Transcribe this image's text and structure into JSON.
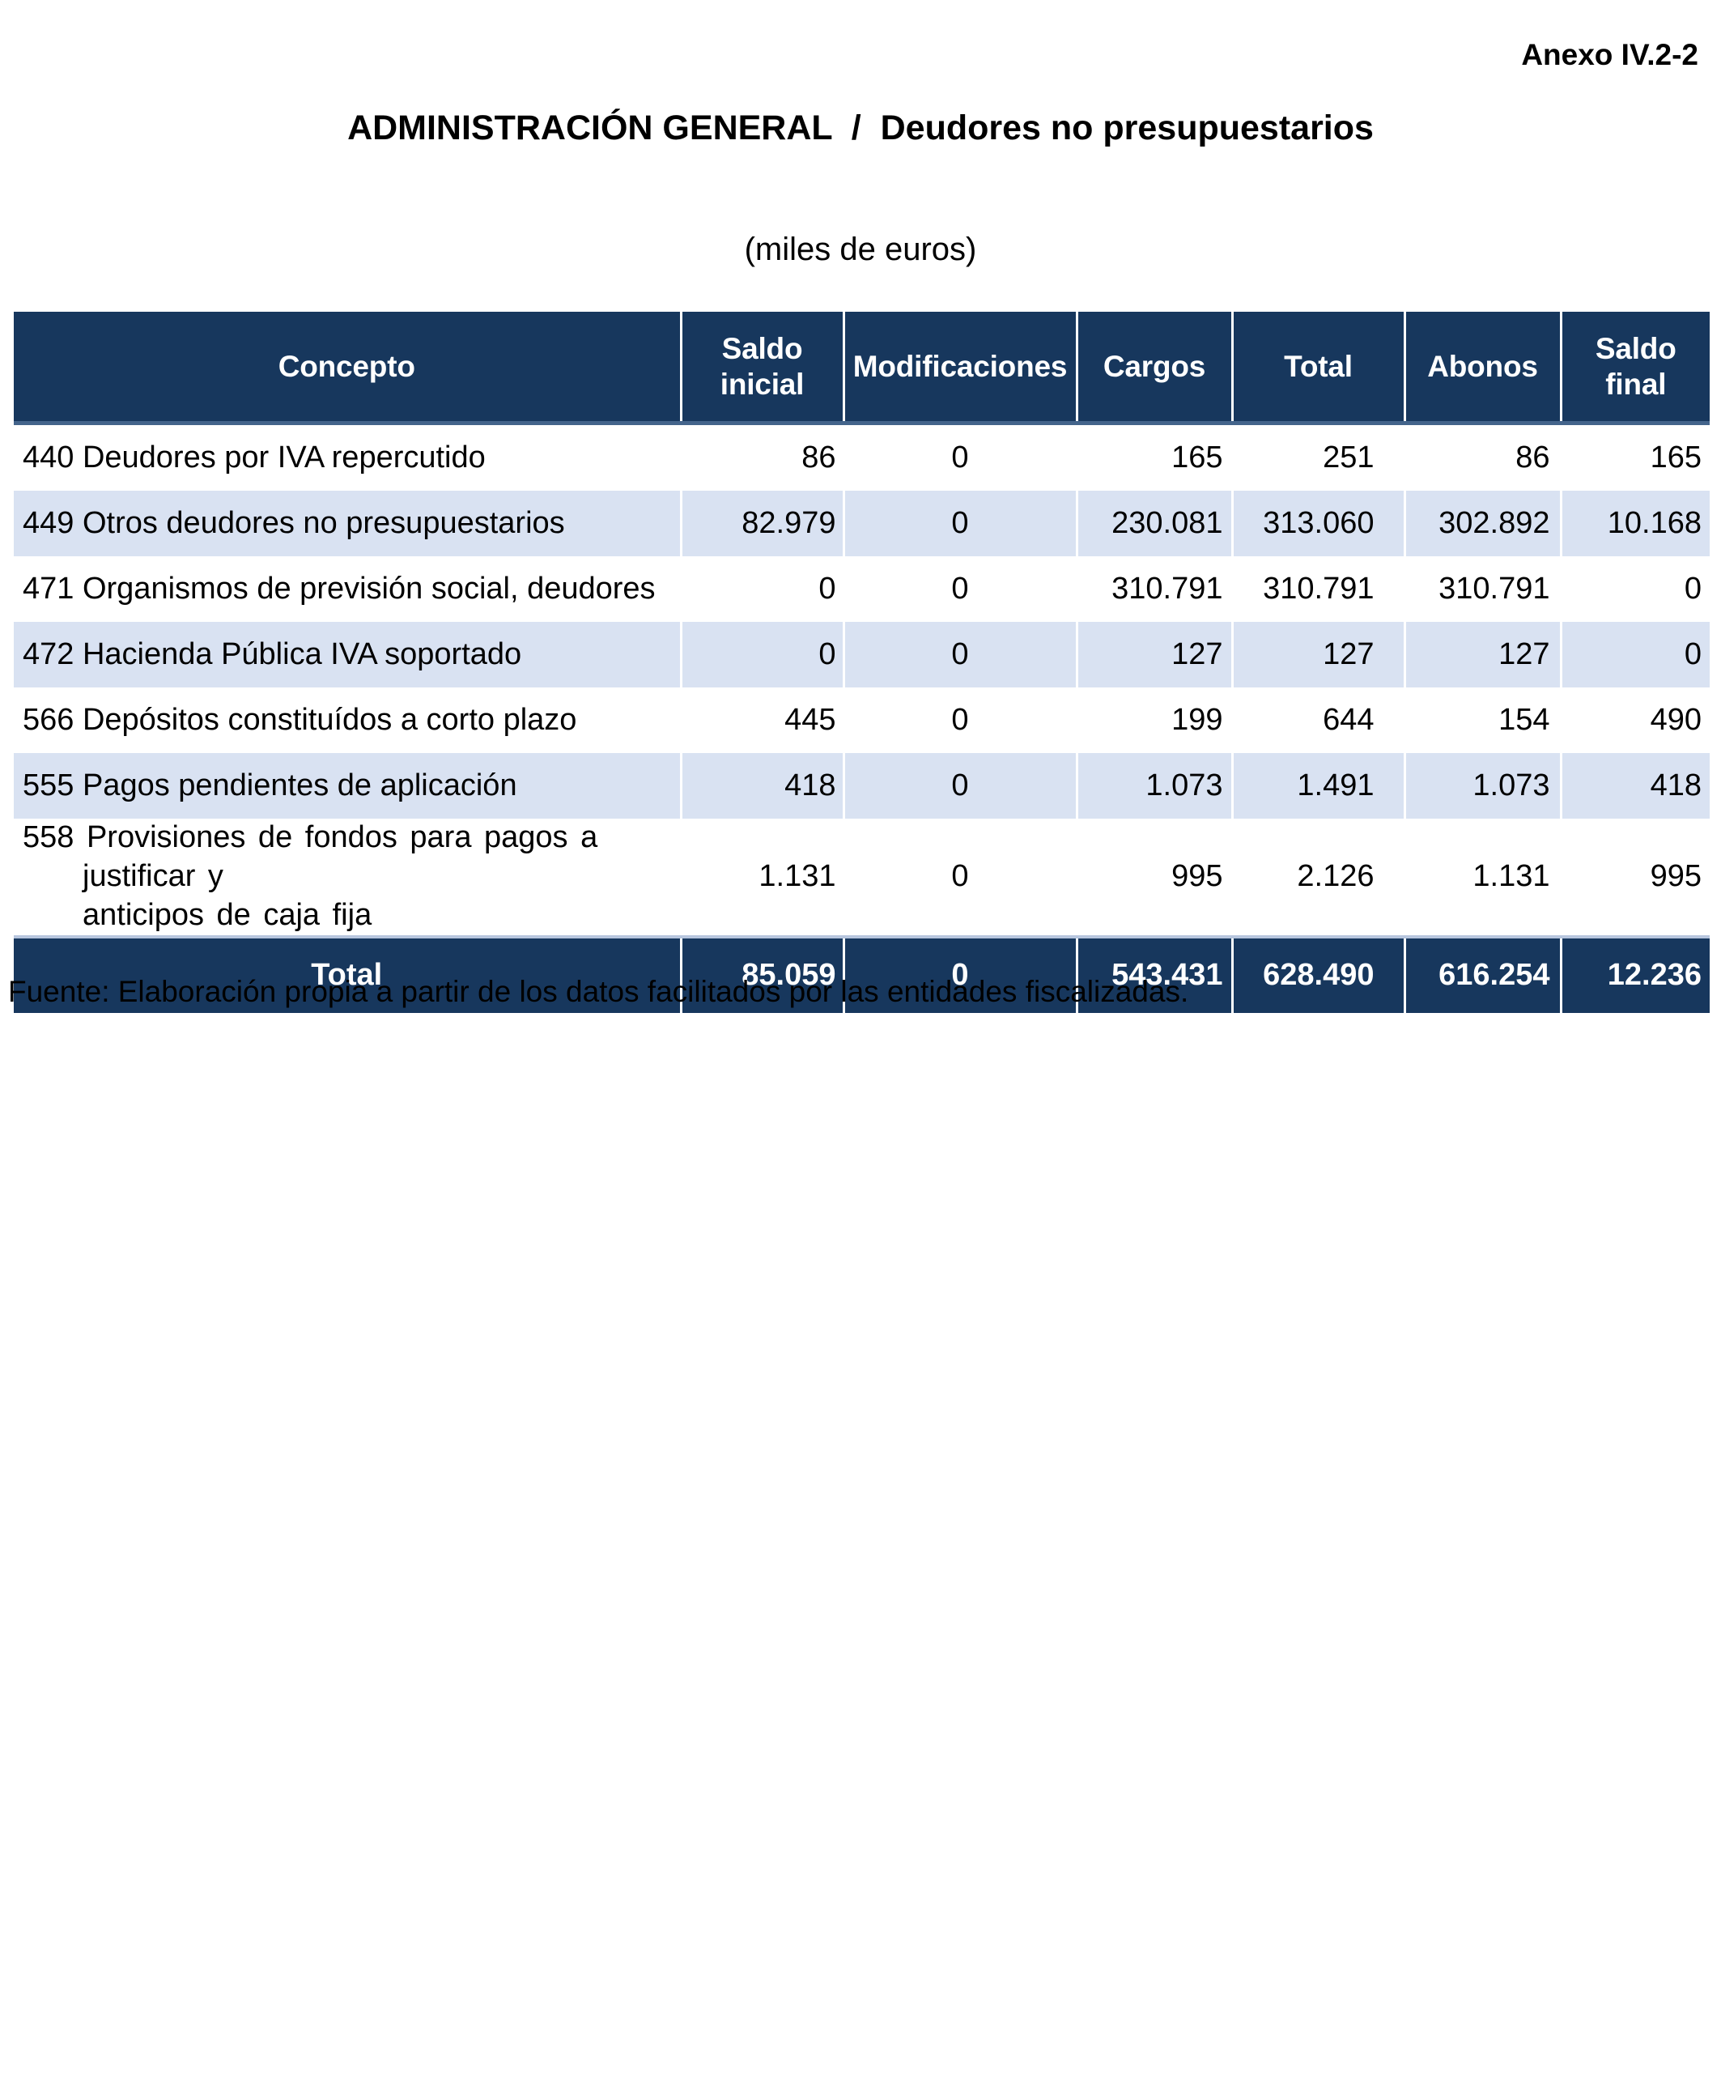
{
  "page": {
    "annex": "Anexo IV.2-2",
    "title": "ADMINISTRACIÓN GENERAL  /  Deudores no presupuestarios",
    "subtitle": "(miles de euros)",
    "source_note": "Fuente: Elaboración propia a partir de los datos facilitados por las entidades fiscalizadas."
  },
  "colors": {
    "header_bg": "#17375D",
    "header_text": "#FFFFFF",
    "alt_row_bg": "#D9E2F2",
    "total_row_bg": "#17375D",
    "total_row_text": "#FFFFFF"
  },
  "table": {
    "columns": [
      "Concepto",
      "Saldo\ninicial",
      "Modificaciones",
      "Cargos",
      "Total",
      "Abonos",
      "Saldo\nfinal"
    ],
    "rows": [
      [
        "440 Deudores por IVA repercutido",
        "86",
        "0",
        "165",
        "251",
        "86",
        "165"
      ],
      [
        "449 Otros deudores no presupuestarios",
        "82.979",
        "0",
        "230.081",
        "313.060",
        "302.892",
        "10.168"
      ],
      [
        "471 Organismos de previsión social, deudores",
        "0",
        "0",
        "310.791",
        "310.791",
        "310.791",
        "0"
      ],
      [
        "472 Hacienda Pública IVA soportado",
        "0",
        "0",
        "127",
        "127",
        "127",
        "0"
      ],
      [
        "566 Depósitos constituídos a corto plazo",
        "445",
        "0",
        "199",
        "644",
        "154",
        "490"
      ],
      [
        "555 Pagos pendientes de aplicación",
        "418",
        "0",
        "1.073",
        "1.491",
        "1.073",
        "418"
      ],
      [
        "558 Provisiones de fondos para pagos a justificar y\nanticipos de caja fija",
        "1.131",
        "0",
        "995",
        "2.126",
        "1.131",
        "995"
      ]
    ],
    "total_row": [
      "Total",
      "85.059",
      "0",
      "543.431",
      "628.490",
      "616.254",
      "12.236"
    ]
  }
}
